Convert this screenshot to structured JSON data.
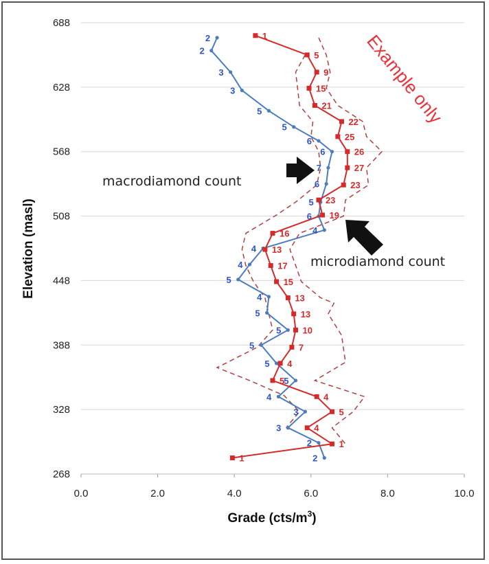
{
  "chart_data": {
    "type": "line",
    "title": "",
    "xlabel": "Grade (cts/m3)",
    "xlabel_main": "Grade (cts/m",
    "xlabel_sup": "3",
    "xlabel_tail": ")",
    "ylabel": "Elevation (masl)",
    "xlim": [
      0,
      10
    ],
    "ylim": [
      268,
      688
    ],
    "x_ticks": [
      "0.0",
      "2.0",
      "4.0",
      "6.0",
      "8.0",
      "10.0"
    ],
    "y_ticks": [
      "268",
      "328",
      "388",
      "448",
      "508",
      "568",
      "628",
      "688"
    ],
    "grid": "horizontal",
    "watermark": "Example only",
    "annotations": {
      "macro": "macrodiamond count",
      "micro": "microdiamond count"
    },
    "colors": {
      "macro": "#2e54c8",
      "macro_line": "#4a7cc0",
      "micro": "#d42a2a",
      "envelope": "#b04040",
      "grid": "#d6d6d6",
      "watermark": "#e8323c"
    },
    "series": [
      {
        "name": "macrodiamond count",
        "style": "line-circle",
        "points": [
          {
            "x": 3.55,
            "y": 674,
            "label": "2"
          },
          {
            "x": 3.4,
            "y": 662,
            "label": "2"
          },
          {
            "x": 3.9,
            "y": 642,
            "label": "3"
          },
          {
            "x": 4.2,
            "y": 625,
            "label": "3"
          },
          {
            "x": 4.9,
            "y": 606,
            "label": "5"
          },
          {
            "x": 5.55,
            "y": 591,
            "label": "5"
          },
          {
            "x": 6.2,
            "y": 578,
            "label": "6"
          },
          {
            "x": 6.55,
            "y": 568,
            "label": "6"
          },
          {
            "x": 6.45,
            "y": 553,
            "label": "7"
          },
          {
            "x": 6.4,
            "y": 538,
            "label": "6"
          },
          {
            "x": 6.25,
            "y": 521,
            "label": "5"
          },
          {
            "x": 6.2,
            "y": 508,
            "label": "6"
          },
          {
            "x": 6.35,
            "y": 495,
            "label": "4"
          },
          {
            "x": 4.75,
            "y": 478,
            "label": "4"
          },
          {
            "x": 4.4,
            "y": 463,
            "label": "4"
          },
          {
            "x": 4.1,
            "y": 449,
            "label": "5"
          },
          {
            "x": 4.9,
            "y": 433,
            "label": "4"
          },
          {
            "x": 4.85,
            "y": 418,
            "label": "5"
          },
          {
            "x": 5.4,
            "y": 402,
            "label": "5"
          },
          {
            "x": 4.7,
            "y": 388,
            "label": "5"
          },
          {
            "x": 5.1,
            "y": 371,
            "label": "5"
          },
          {
            "x": 5.6,
            "y": 355,
            "label": "5"
          },
          {
            "x": 5.15,
            "y": 340,
            "label": "4"
          },
          {
            "x": 5.85,
            "y": 326,
            "label": "3"
          },
          {
            "x": 5.4,
            "y": 311,
            "label": "3"
          },
          {
            "x": 6.2,
            "y": 297,
            "label": "2"
          },
          {
            "x": 6.35,
            "y": 283,
            "label": "2"
          }
        ]
      },
      {
        "name": "microdiamond count",
        "style": "line-square",
        "points": [
          {
            "x": 4.55,
            "y": 676,
            "label": "1"
          },
          {
            "x": 5.9,
            "y": 658,
            "label": "5"
          },
          {
            "x": 6.15,
            "y": 642,
            "label": "9"
          },
          {
            "x": 5.95,
            "y": 627,
            "label": "15"
          },
          {
            "x": 6.1,
            "y": 611,
            "label": "21"
          },
          {
            "x": 6.8,
            "y": 596,
            "label": "22"
          },
          {
            "x": 6.7,
            "y": 582,
            "label": "25"
          },
          {
            "x": 6.95,
            "y": 568,
            "label": "26"
          },
          {
            "x": 6.95,
            "y": 553,
            "label": "27"
          },
          {
            "x": 6.85,
            "y": 537,
            "label": "23"
          },
          {
            "x": 6.2,
            "y": 523,
            "label": "23"
          },
          {
            "x": 6.3,
            "y": 509,
            "label": "19"
          },
          {
            "x": 5.0,
            "y": 492,
            "label": "16"
          },
          {
            "x": 4.8,
            "y": 477,
            "label": "13"
          },
          {
            "x": 4.95,
            "y": 462,
            "label": "17"
          },
          {
            "x": 5.1,
            "y": 447,
            "label": "15"
          },
          {
            "x": 5.4,
            "y": 432,
            "label": "13"
          },
          {
            "x": 5.55,
            "y": 417,
            "label": "13"
          },
          {
            "x": 5.6,
            "y": 402,
            "label": "10"
          },
          {
            "x": 5.5,
            "y": 386,
            "label": "7"
          },
          {
            "x": 5.2,
            "y": 371,
            "label": "4"
          },
          {
            "x": 5.0,
            "y": 355,
            "label": "5"
          },
          {
            "x": 6.15,
            "y": 340,
            "label": "4"
          },
          {
            "x": 6.55,
            "y": 326,
            "label": "5"
          },
          {
            "x": 5.9,
            "y": 311,
            "label": "4"
          },
          {
            "x": 6.55,
            "y": 296,
            "label": "1"
          },
          {
            "x": 3.95,
            "y": 283,
            "label": "1"
          }
        ]
      }
    ],
    "envelope_right": [
      {
        "x": 6.2,
        "y": 674
      },
      {
        "x": 6.4,
        "y": 658
      },
      {
        "x": 6.5,
        "y": 642
      },
      {
        "x": 6.4,
        "y": 627
      },
      {
        "x": 6.7,
        "y": 611
      },
      {
        "x": 7.35,
        "y": 596
      },
      {
        "x": 7.45,
        "y": 582
      },
      {
        "x": 7.85,
        "y": 568
      },
      {
        "x": 7.45,
        "y": 553
      },
      {
        "x": 7.5,
        "y": 537
      },
      {
        "x": 6.9,
        "y": 523
      },
      {
        "x": 6.85,
        "y": 508
      },
      {
        "x": 5.7,
        "y": 492
      },
      {
        "x": 5.45,
        "y": 477
      },
      {
        "x": 5.6,
        "y": 462
      },
      {
        "x": 5.75,
        "y": 447
      },
      {
        "x": 6.25,
        "y": 432
      },
      {
        "x": 6.6,
        "y": 427
      },
      {
        "x": 6.45,
        "y": 417
      },
      {
        "x": 6.8,
        "y": 397
      },
      {
        "x": 6.9,
        "y": 372
      },
      {
        "x": 6.1,
        "y": 355
      },
      {
        "x": 7.4,
        "y": 340
      },
      {
        "x": 7.1,
        "y": 326
      },
      {
        "x": 6.55,
        "y": 311
      },
      {
        "x": 6.9,
        "y": 296
      }
    ],
    "envelope_left": [
      {
        "x": 5.85,
        "y": 658
      },
      {
        "x": 5.6,
        "y": 642
      },
      {
        "x": 5.65,
        "y": 627
      },
      {
        "x": 5.7,
        "y": 611
      },
      {
        "x": 6.05,
        "y": 596
      },
      {
        "x": 6.0,
        "y": 582
      },
      {
        "x": 6.2,
        "y": 568
      },
      {
        "x": 6.25,
        "y": 553
      },
      {
        "x": 6.15,
        "y": 537
      },
      {
        "x": 5.6,
        "y": 521
      },
      {
        "x": 5.1,
        "y": 509
      },
      {
        "x": 4.3,
        "y": 492
      },
      {
        "x": 4.2,
        "y": 477
      },
      {
        "x": 4.3,
        "y": 462
      },
      {
        "x": 4.5,
        "y": 447
      },
      {
        "x": 4.8,
        "y": 432
      },
      {
        "x": 4.9,
        "y": 417
      },
      {
        "x": 5.0,
        "y": 402
      },
      {
        "x": 4.6,
        "y": 386
      },
      {
        "x": 3.55,
        "y": 367
      },
      {
        "x": 4.4,
        "y": 355
      },
      {
        "x": 5.3,
        "y": 341
      },
      {
        "x": 5.7,
        "y": 326
      },
      {
        "x": 5.35,
        "y": 311
      }
    ]
  }
}
